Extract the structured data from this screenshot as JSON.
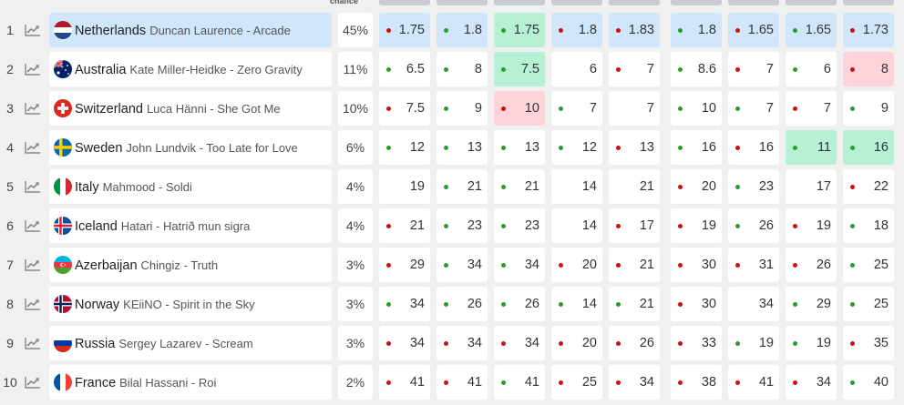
{
  "header": {
    "chance_label": "chance"
  },
  "colors": {
    "highlight": "#cfe6fb",
    "best": "#b6f0d5",
    "worst": "#ffd3d9",
    "drift_up": "#2b9b2b",
    "drift_down": "#cc1010"
  },
  "rows": [
    {
      "rank": "1",
      "country": "Netherlands",
      "entry": "Duncan Laurence - Arcade",
      "flag": "netherlands-flag-icon",
      "chance": "45%",
      "highlight": true,
      "odds": [
        {
          "v": "1.75",
          "d": "down",
          "s": ""
        },
        {
          "v": "1.8",
          "d": "up",
          "s": ""
        },
        {
          "v": "1.75",
          "d": "up",
          "s": "best"
        },
        {
          "v": "1.8",
          "d": "down",
          "s": ""
        },
        {
          "v": "1.83",
          "d": "down",
          "s": ""
        },
        {
          "v": "1.8",
          "d": "up",
          "s": ""
        },
        {
          "v": "1.65",
          "d": "down",
          "s": ""
        },
        {
          "v": "1.65",
          "d": "up",
          "s": ""
        },
        {
          "v": "1.73",
          "d": "down",
          "s": ""
        }
      ]
    },
    {
      "rank": "2",
      "country": "Australia",
      "entry": "Kate Miller-Heidke - Zero Gravity",
      "flag": "australia-flag-icon",
      "chance": "11%",
      "highlight": false,
      "odds": [
        {
          "v": "6.5",
          "d": "up",
          "s": ""
        },
        {
          "v": "8",
          "d": "up",
          "s": ""
        },
        {
          "v": "7.5",
          "d": "up",
          "s": "best"
        },
        {
          "v": "6",
          "d": "",
          "s": ""
        },
        {
          "v": "7",
          "d": "down",
          "s": ""
        },
        {
          "v": "8.6",
          "d": "up",
          "s": ""
        },
        {
          "v": "7",
          "d": "down",
          "s": ""
        },
        {
          "v": "6",
          "d": "up",
          "s": ""
        },
        {
          "v": "8",
          "d": "down",
          "s": "worst"
        }
      ]
    },
    {
      "rank": "3",
      "country": "Switzerland",
      "entry": "Luca Hänni - She Got Me",
      "flag": "switzerland-flag-icon",
      "chance": "10%",
      "highlight": false,
      "odds": [
        {
          "v": "7.5",
          "d": "down",
          "s": ""
        },
        {
          "v": "9",
          "d": "up",
          "s": ""
        },
        {
          "v": "10",
          "d": "down",
          "s": "worst"
        },
        {
          "v": "7",
          "d": "up",
          "s": ""
        },
        {
          "v": "7",
          "d": "",
          "s": ""
        },
        {
          "v": "10",
          "d": "up",
          "s": ""
        },
        {
          "v": "7",
          "d": "up",
          "s": ""
        },
        {
          "v": "7",
          "d": "down",
          "s": ""
        },
        {
          "v": "9",
          "d": "up",
          "s": ""
        }
      ]
    },
    {
      "rank": "4",
      "country": "Sweden",
      "entry": "John Lundvik - Too Late for Love",
      "flag": "sweden-flag-icon",
      "chance": "6%",
      "highlight": false,
      "odds": [
        {
          "v": "12",
          "d": "up",
          "s": ""
        },
        {
          "v": "13",
          "d": "up",
          "s": ""
        },
        {
          "v": "13",
          "d": "up",
          "s": ""
        },
        {
          "v": "12",
          "d": "up",
          "s": ""
        },
        {
          "v": "13",
          "d": "down",
          "s": ""
        },
        {
          "v": "16",
          "d": "up",
          "s": ""
        },
        {
          "v": "16",
          "d": "down",
          "s": ""
        },
        {
          "v": "11",
          "d": "up",
          "s": "best"
        },
        {
          "v": "16",
          "d": "up",
          "s": "best"
        }
      ]
    },
    {
      "rank": "5",
      "country": "Italy",
      "entry": "Mahmood - Soldi",
      "flag": "italy-flag-icon",
      "chance": "4%",
      "highlight": false,
      "odds": [
        {
          "v": "19",
          "d": "",
          "s": ""
        },
        {
          "v": "21",
          "d": "up",
          "s": ""
        },
        {
          "v": "21",
          "d": "up",
          "s": ""
        },
        {
          "v": "14",
          "d": "",
          "s": ""
        },
        {
          "v": "21",
          "d": "",
          "s": ""
        },
        {
          "v": "20",
          "d": "down",
          "s": ""
        },
        {
          "v": "23",
          "d": "up",
          "s": ""
        },
        {
          "v": "17",
          "d": "",
          "s": ""
        },
        {
          "v": "22",
          "d": "down",
          "s": ""
        }
      ]
    },
    {
      "rank": "6",
      "country": "Iceland",
      "entry": "Hatari - Hatrið mun sigra",
      "flag": "iceland-flag-icon",
      "chance": "4%",
      "highlight": false,
      "odds": [
        {
          "v": "21",
          "d": "down",
          "s": ""
        },
        {
          "v": "23",
          "d": "up",
          "s": ""
        },
        {
          "v": "23",
          "d": "up",
          "s": ""
        },
        {
          "v": "14",
          "d": "",
          "s": ""
        },
        {
          "v": "17",
          "d": "down",
          "s": ""
        },
        {
          "v": "19",
          "d": "down",
          "s": ""
        },
        {
          "v": "26",
          "d": "up",
          "s": ""
        },
        {
          "v": "19",
          "d": "down",
          "s": ""
        },
        {
          "v": "18",
          "d": "up",
          "s": ""
        }
      ]
    },
    {
      "rank": "7",
      "country": "Azerbaijan",
      "entry": "Chingiz - Truth",
      "flag": "azerbaijan-flag-icon",
      "chance": "3%",
      "highlight": false,
      "odds": [
        {
          "v": "29",
          "d": "down",
          "s": ""
        },
        {
          "v": "34",
          "d": "up",
          "s": ""
        },
        {
          "v": "34",
          "d": "up",
          "s": ""
        },
        {
          "v": "20",
          "d": "down",
          "s": ""
        },
        {
          "v": "21",
          "d": "down",
          "s": ""
        },
        {
          "v": "30",
          "d": "down",
          "s": ""
        },
        {
          "v": "31",
          "d": "down",
          "s": ""
        },
        {
          "v": "26",
          "d": "down",
          "s": ""
        },
        {
          "v": "25",
          "d": "up",
          "s": ""
        }
      ]
    },
    {
      "rank": "8",
      "country": "Norway",
      "entry": "KEiiNO - Spirit in the Sky",
      "flag": "norway-flag-icon",
      "chance": "3%",
      "highlight": false,
      "odds": [
        {
          "v": "34",
          "d": "up",
          "s": ""
        },
        {
          "v": "26",
          "d": "up",
          "s": ""
        },
        {
          "v": "26",
          "d": "up",
          "s": ""
        },
        {
          "v": "14",
          "d": "up",
          "s": ""
        },
        {
          "v": "21",
          "d": "up",
          "s": ""
        },
        {
          "v": "30",
          "d": "down",
          "s": ""
        },
        {
          "v": "34",
          "d": "",
          "s": ""
        },
        {
          "v": "29",
          "d": "up",
          "s": ""
        },
        {
          "v": "25",
          "d": "up",
          "s": ""
        }
      ]
    },
    {
      "rank": "9",
      "country": "Russia",
      "entry": "Sergey Lazarev - Scream",
      "flag": "russia-flag-icon",
      "chance": "3%",
      "highlight": false,
      "odds": [
        {
          "v": "34",
          "d": "down",
          "s": ""
        },
        {
          "v": "34",
          "d": "down",
          "s": ""
        },
        {
          "v": "34",
          "d": "down",
          "s": ""
        },
        {
          "v": "20",
          "d": "down",
          "s": ""
        },
        {
          "v": "26",
          "d": "down",
          "s": ""
        },
        {
          "v": "33",
          "d": "down",
          "s": ""
        },
        {
          "v": "19",
          "d": "up",
          "s": ""
        },
        {
          "v": "19",
          "d": "up",
          "s": ""
        },
        {
          "v": "35",
          "d": "down",
          "s": ""
        }
      ]
    },
    {
      "rank": "10",
      "country": "France",
      "entry": "Bilal Hassani - Roi",
      "flag": "france-flag-icon",
      "chance": "2%",
      "highlight": false,
      "odds": [
        {
          "v": "41",
          "d": "down",
          "s": ""
        },
        {
          "v": "41",
          "d": "down",
          "s": ""
        },
        {
          "v": "41",
          "d": "up",
          "s": ""
        },
        {
          "v": "25",
          "d": "down",
          "s": ""
        },
        {
          "v": "34",
          "d": "down",
          "s": ""
        },
        {
          "v": "38",
          "d": "down",
          "s": ""
        },
        {
          "v": "41",
          "d": "down",
          "s": ""
        },
        {
          "v": "34",
          "d": "down",
          "s": ""
        },
        {
          "v": "40",
          "d": "up",
          "s": ""
        }
      ]
    }
  ]
}
